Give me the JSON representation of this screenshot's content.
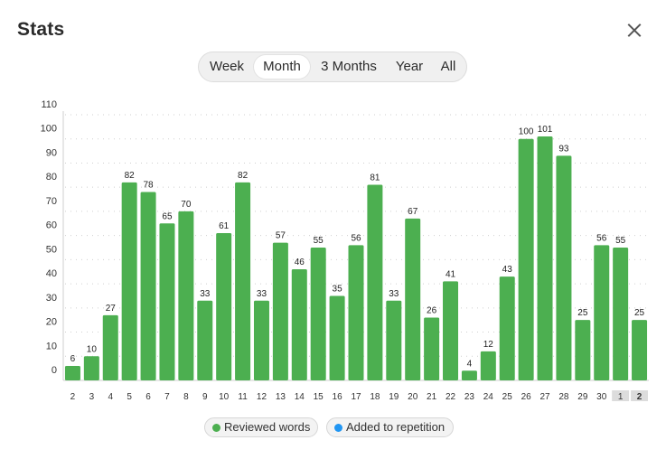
{
  "header": {
    "title": "Stats"
  },
  "range_tabs": [
    {
      "label": "Week",
      "active": false
    },
    {
      "label": "Month",
      "active": true
    },
    {
      "label": "3 Months",
      "active": false
    },
    {
      "label": "Year",
      "active": false
    },
    {
      "label": "All",
      "active": false
    }
  ],
  "legend": [
    {
      "label": "Reviewed words",
      "color": "#4caf50"
    },
    {
      "label": "Added to repetition",
      "color": "#2196f3"
    }
  ],
  "chart_data": {
    "type": "bar",
    "categories": [
      "2",
      "3",
      "4",
      "5",
      "6",
      "7",
      "8",
      "9",
      "10",
      "11",
      "12",
      "13",
      "14",
      "15",
      "16",
      "17",
      "18",
      "19",
      "20",
      "21",
      "22",
      "23",
      "24",
      "25",
      "26",
      "27",
      "28",
      "29",
      "30",
      "1",
      "2"
    ],
    "highlighted_categories": [
      29,
      30
    ],
    "series": [
      {
        "name": "Reviewed words",
        "color": "#4caf50",
        "values": [
          6,
          10,
          27,
          82,
          78,
          65,
          70,
          33,
          61,
          82,
          33,
          57,
          46,
          55,
          35,
          56,
          81,
          33,
          67,
          26,
          41,
          4,
          12,
          43,
          100,
          101,
          93,
          25,
          56,
          55,
          25
        ]
      },
      {
        "name": "Added to repetition",
        "color": "#2196f3",
        "values": [
          0,
          0,
          0,
          0,
          0,
          0,
          0,
          0,
          0,
          0,
          0,
          0,
          0,
          0,
          0,
          0,
          0,
          0,
          0,
          0,
          0,
          0,
          0,
          0,
          0,
          0,
          0,
          0,
          0,
          0,
          0
        ]
      }
    ],
    "y_ticks": [
      0,
      10,
      20,
      30,
      40,
      50,
      60,
      70,
      80,
      90,
      100,
      110
    ],
    "ylim": [
      0,
      112
    ],
    "grid": true,
    "legend_position": "bottom-center"
  }
}
